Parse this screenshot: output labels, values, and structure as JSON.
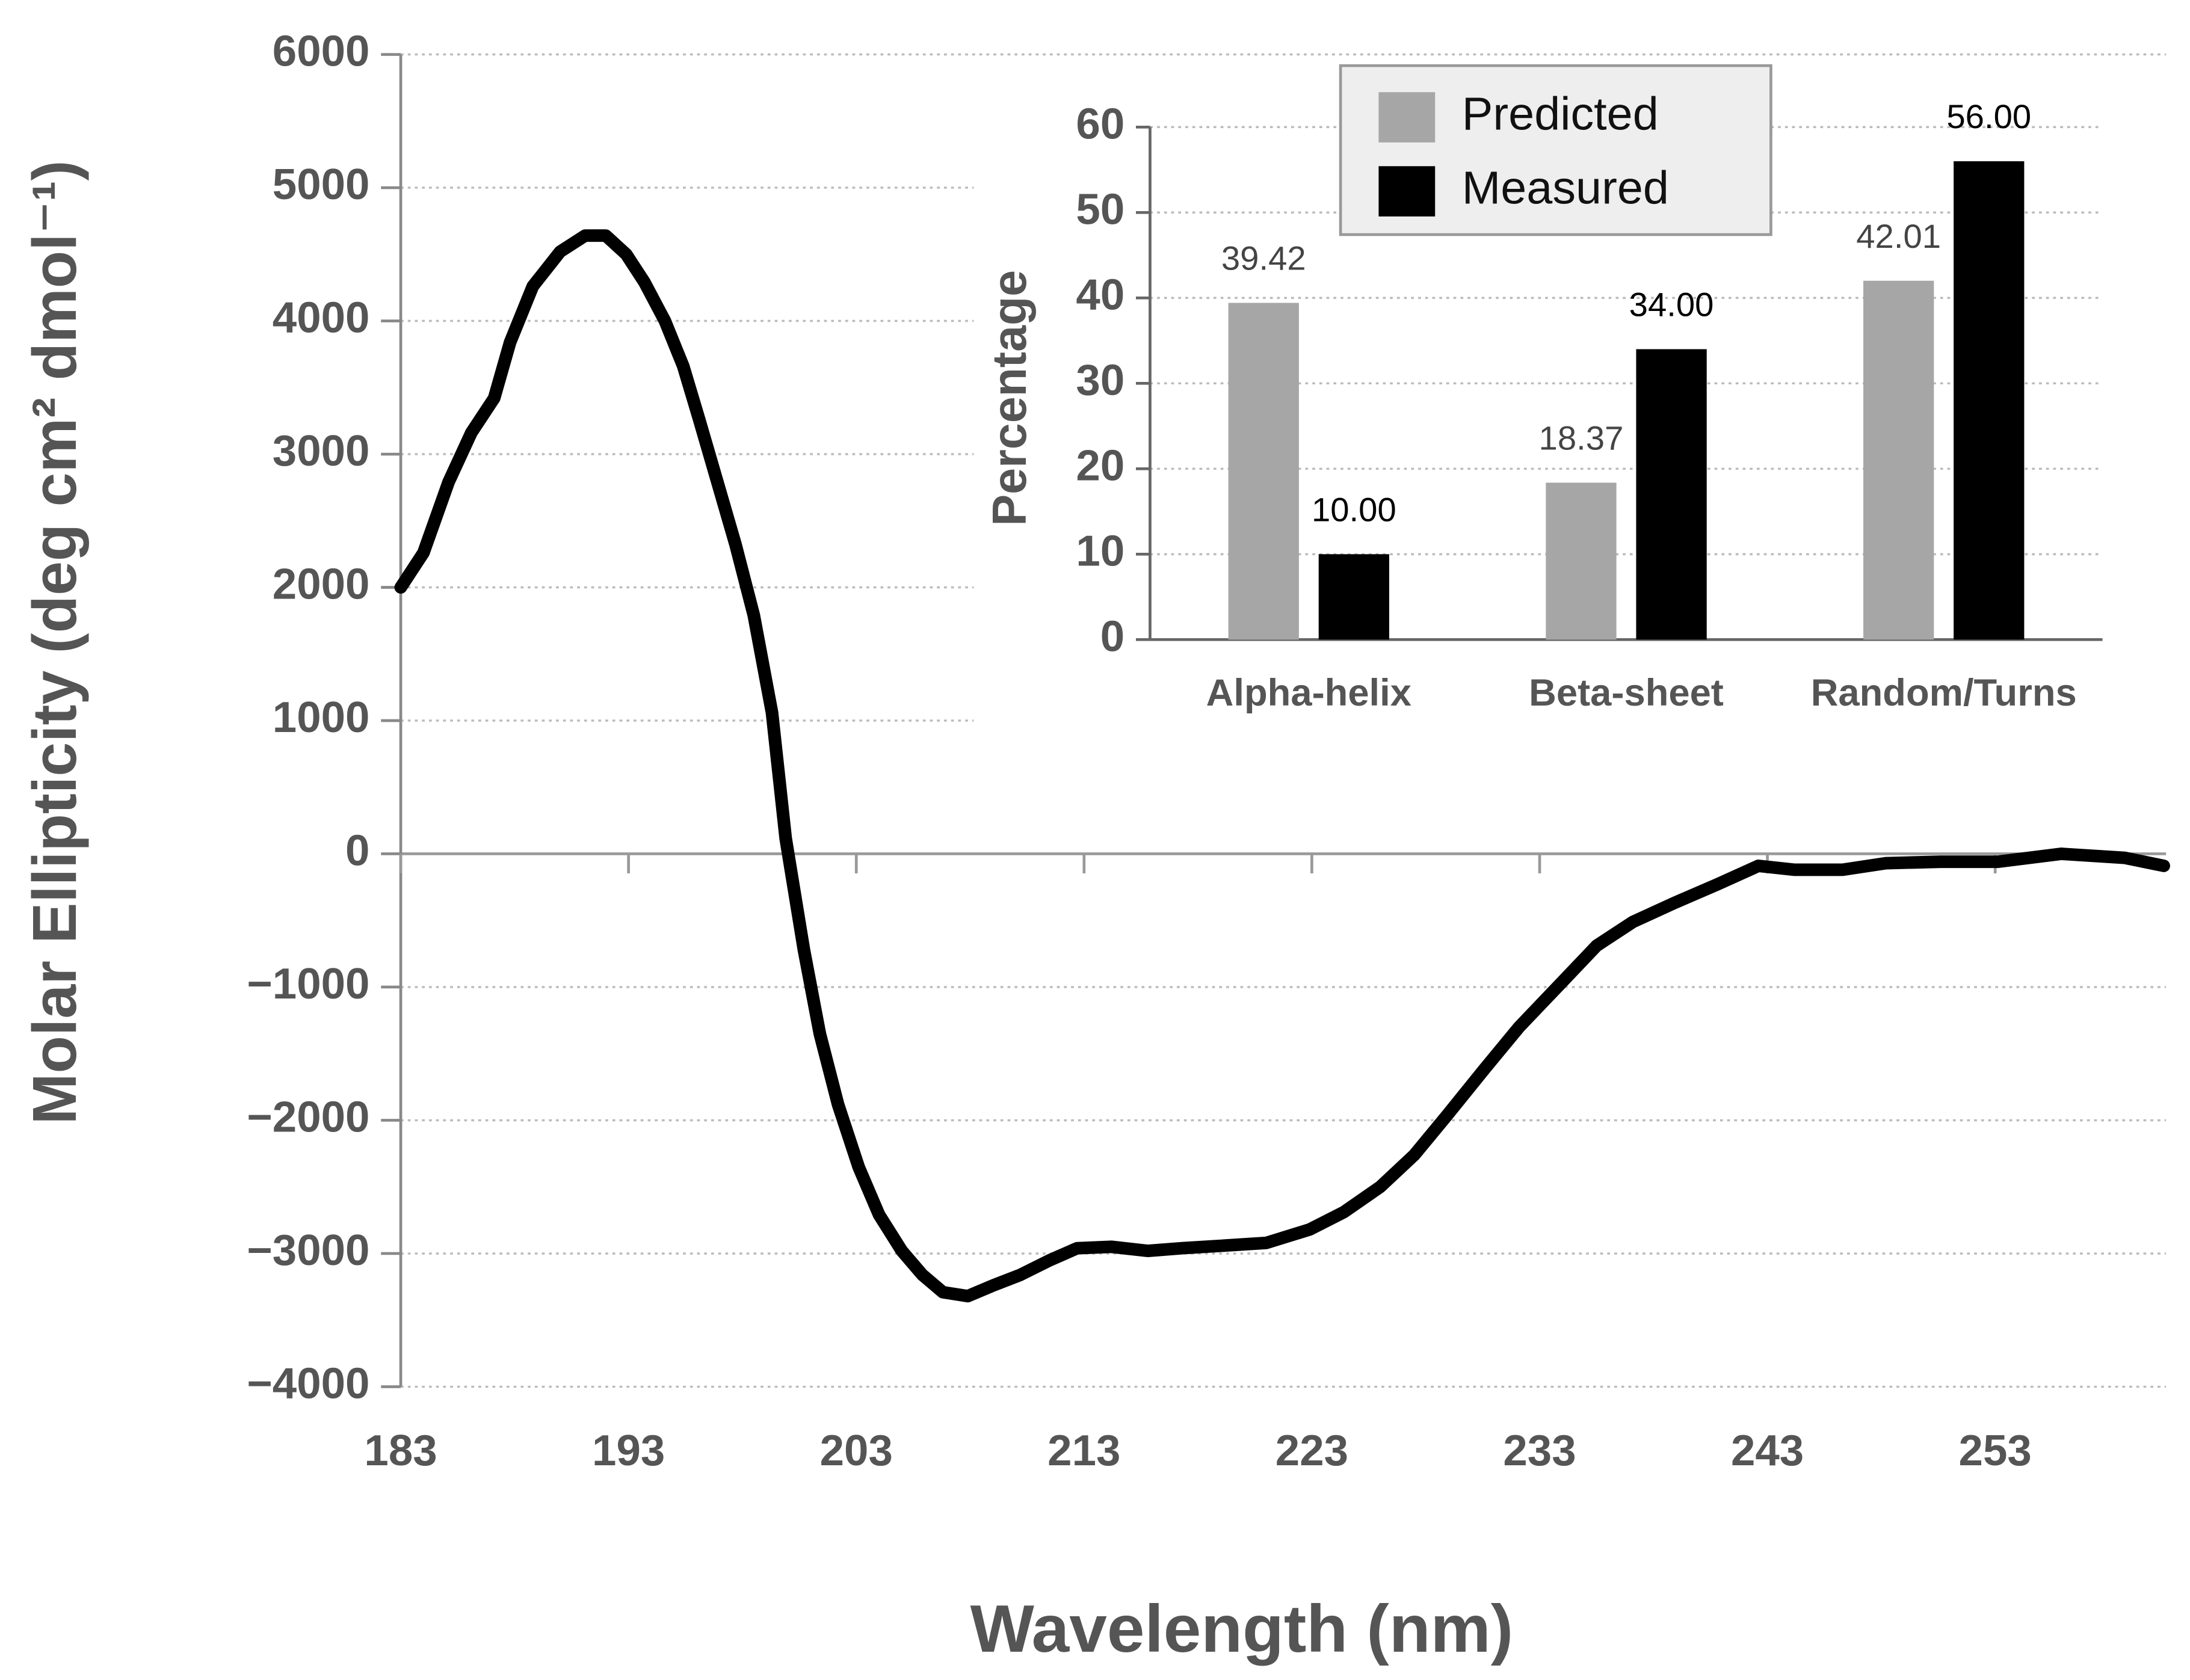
{
  "chart_data": [
    {
      "type": "line",
      "x_label": "Wavelength (nm)",
      "y_label": "Molar Ellipticity (deg cm² dmol⁻¹)",
      "color": "#000000",
      "x": [
        183,
        184,
        185.1,
        186.1,
        187.1,
        187.8,
        188.8,
        190,
        191.1,
        192,
        192.9,
        193.7,
        194.6,
        195.4,
        196.1,
        196.9,
        197.7,
        198.5,
        199.3,
        199.9,
        200.7,
        201.4,
        202.2,
        203.1,
        204,
        205,
        205.9,
        206.8,
        207.9,
        209,
        210.2,
        211.5,
        212.7,
        214.2,
        215.8,
        217.3,
        219.2,
        221,
        222.9,
        224.4,
        226,
        227.5,
        229,
        230.6,
        232.1,
        234,
        235.5,
        237.1,
        238.9,
        240.8,
        242.6,
        244.2,
        246.3,
        248.2,
        250.6,
        253.1,
        255.9,
        258.7,
        260.4
      ],
      "values": [
        2000,
        2260,
        2790,
        3160,
        3420,
        3840,
        4260,
        4520,
        4640,
        4640,
        4500,
        4290,
        4000,
        3660,
        3260,
        2790,
        2320,
        1790,
        1060,
        115,
        -720,
        -1350,
        -1880,
        -2350,
        -2710,
        -2980,
        -3160,
        -3290,
        -3320,
        -3240,
        -3160,
        -3050,
        -2960,
        -2950,
        -2980,
        -2960,
        -2940,
        -2920,
        -2820,
        -2690,
        -2500,
        -2260,
        -1950,
        -1610,
        -1300,
        -960,
        -690,
        -510,
        -370,
        -230,
        -90,
        -120,
        -120,
        -70,
        -60,
        -60,
        0,
        -30,
        -90
      ],
      "xlim": [
        183,
        260.5
      ],
      "xticks": [
        183,
        193,
        203,
        213,
        223,
        233,
        243,
        253
      ],
      "ylim": [
        -4000,
        6000
      ],
      "yticks": [
        {
          "value": -4000,
          "label": "−4000"
        },
        {
          "value": -3000,
          "label": "−3000"
        },
        {
          "value": -2000,
          "label": "−2000"
        },
        {
          "value": -1000,
          "label": "−1000"
        },
        0,
        1000,
        2000,
        3000,
        4000,
        5000,
        6000
      ],
      "grid": true
    },
    {
      "type": "bar",
      "y_label": "Percentage",
      "categories": [
        "Alpha-helix",
        "Beta-sheet",
        "Random/Turns"
      ],
      "series": [
        {
          "name": "Predicted",
          "color": "#a6a6a6",
          "values": [
            39.42,
            18.37,
            42.01
          ],
          "value_labels": [
            "39.42",
            "18.37",
            "42.01"
          ]
        },
        {
          "name": "Measured",
          "color": "#000000",
          "values": [
            10,
            34,
            56
          ],
          "value_labels": [
            "10.00",
            "34.00",
            "56.00"
          ]
        }
      ],
      "ylim": [
        0,
        60
      ],
      "yticks": [
        0,
        10,
        20,
        30,
        40,
        50,
        60
      ],
      "grid": true,
      "legend": "top-left"
    }
  ]
}
